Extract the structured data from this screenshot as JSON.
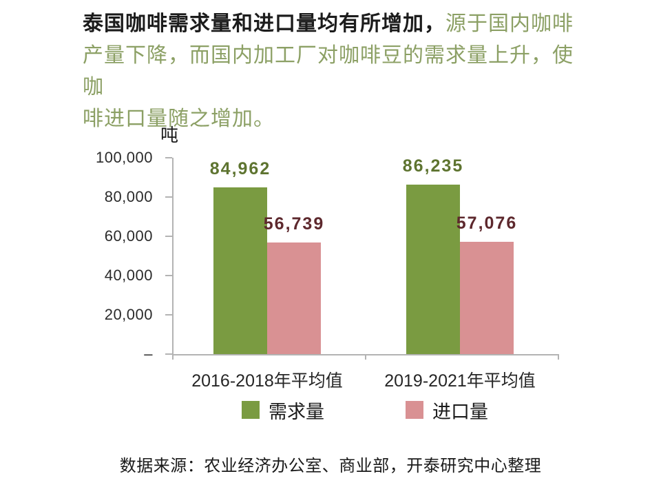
{
  "headline": {
    "emphasis": "泰国咖啡需求量和进口量均有所增加，",
    "green_line1": "源于国内咖啡",
    "green_line2": "产量下降，而国内加工厂对咖啡豆的需求量上升，使咖",
    "green_line3": "啡进口量随之增加。"
  },
  "chart_data": {
    "type": "bar",
    "unit_label": "吨",
    "categories": [
      "2016-2018年平均值",
      "2019-2021年平均值"
    ],
    "series": [
      {
        "name": "需求量",
        "values": [
          84962,
          86235
        ],
        "data_labels": [
          "84,962",
          "86,235"
        ],
        "bar_color": "#7A9B41",
        "label_color": "#5E7430"
      },
      {
        "name": "进口量",
        "values": [
          56739,
          57076
        ],
        "data_labels": [
          "56,739",
          "57,076"
        ],
        "bar_color": "#D99193",
        "label_color": "#5D282D"
      }
    ],
    "y_axis": {
      "ticks": [
        "100,000",
        "80,000",
        "60,000",
        "40,000",
        "20,000",
        "–"
      ],
      "min": 0,
      "max": 100000
    },
    "grid": false,
    "legend_position": "bottom"
  },
  "source_note": "数据来源：农业经济办公室、商业部，开泰研究中心整理",
  "colors": {
    "headline_green": "#8CA065",
    "axis_line": "#B3B3B3"
  }
}
